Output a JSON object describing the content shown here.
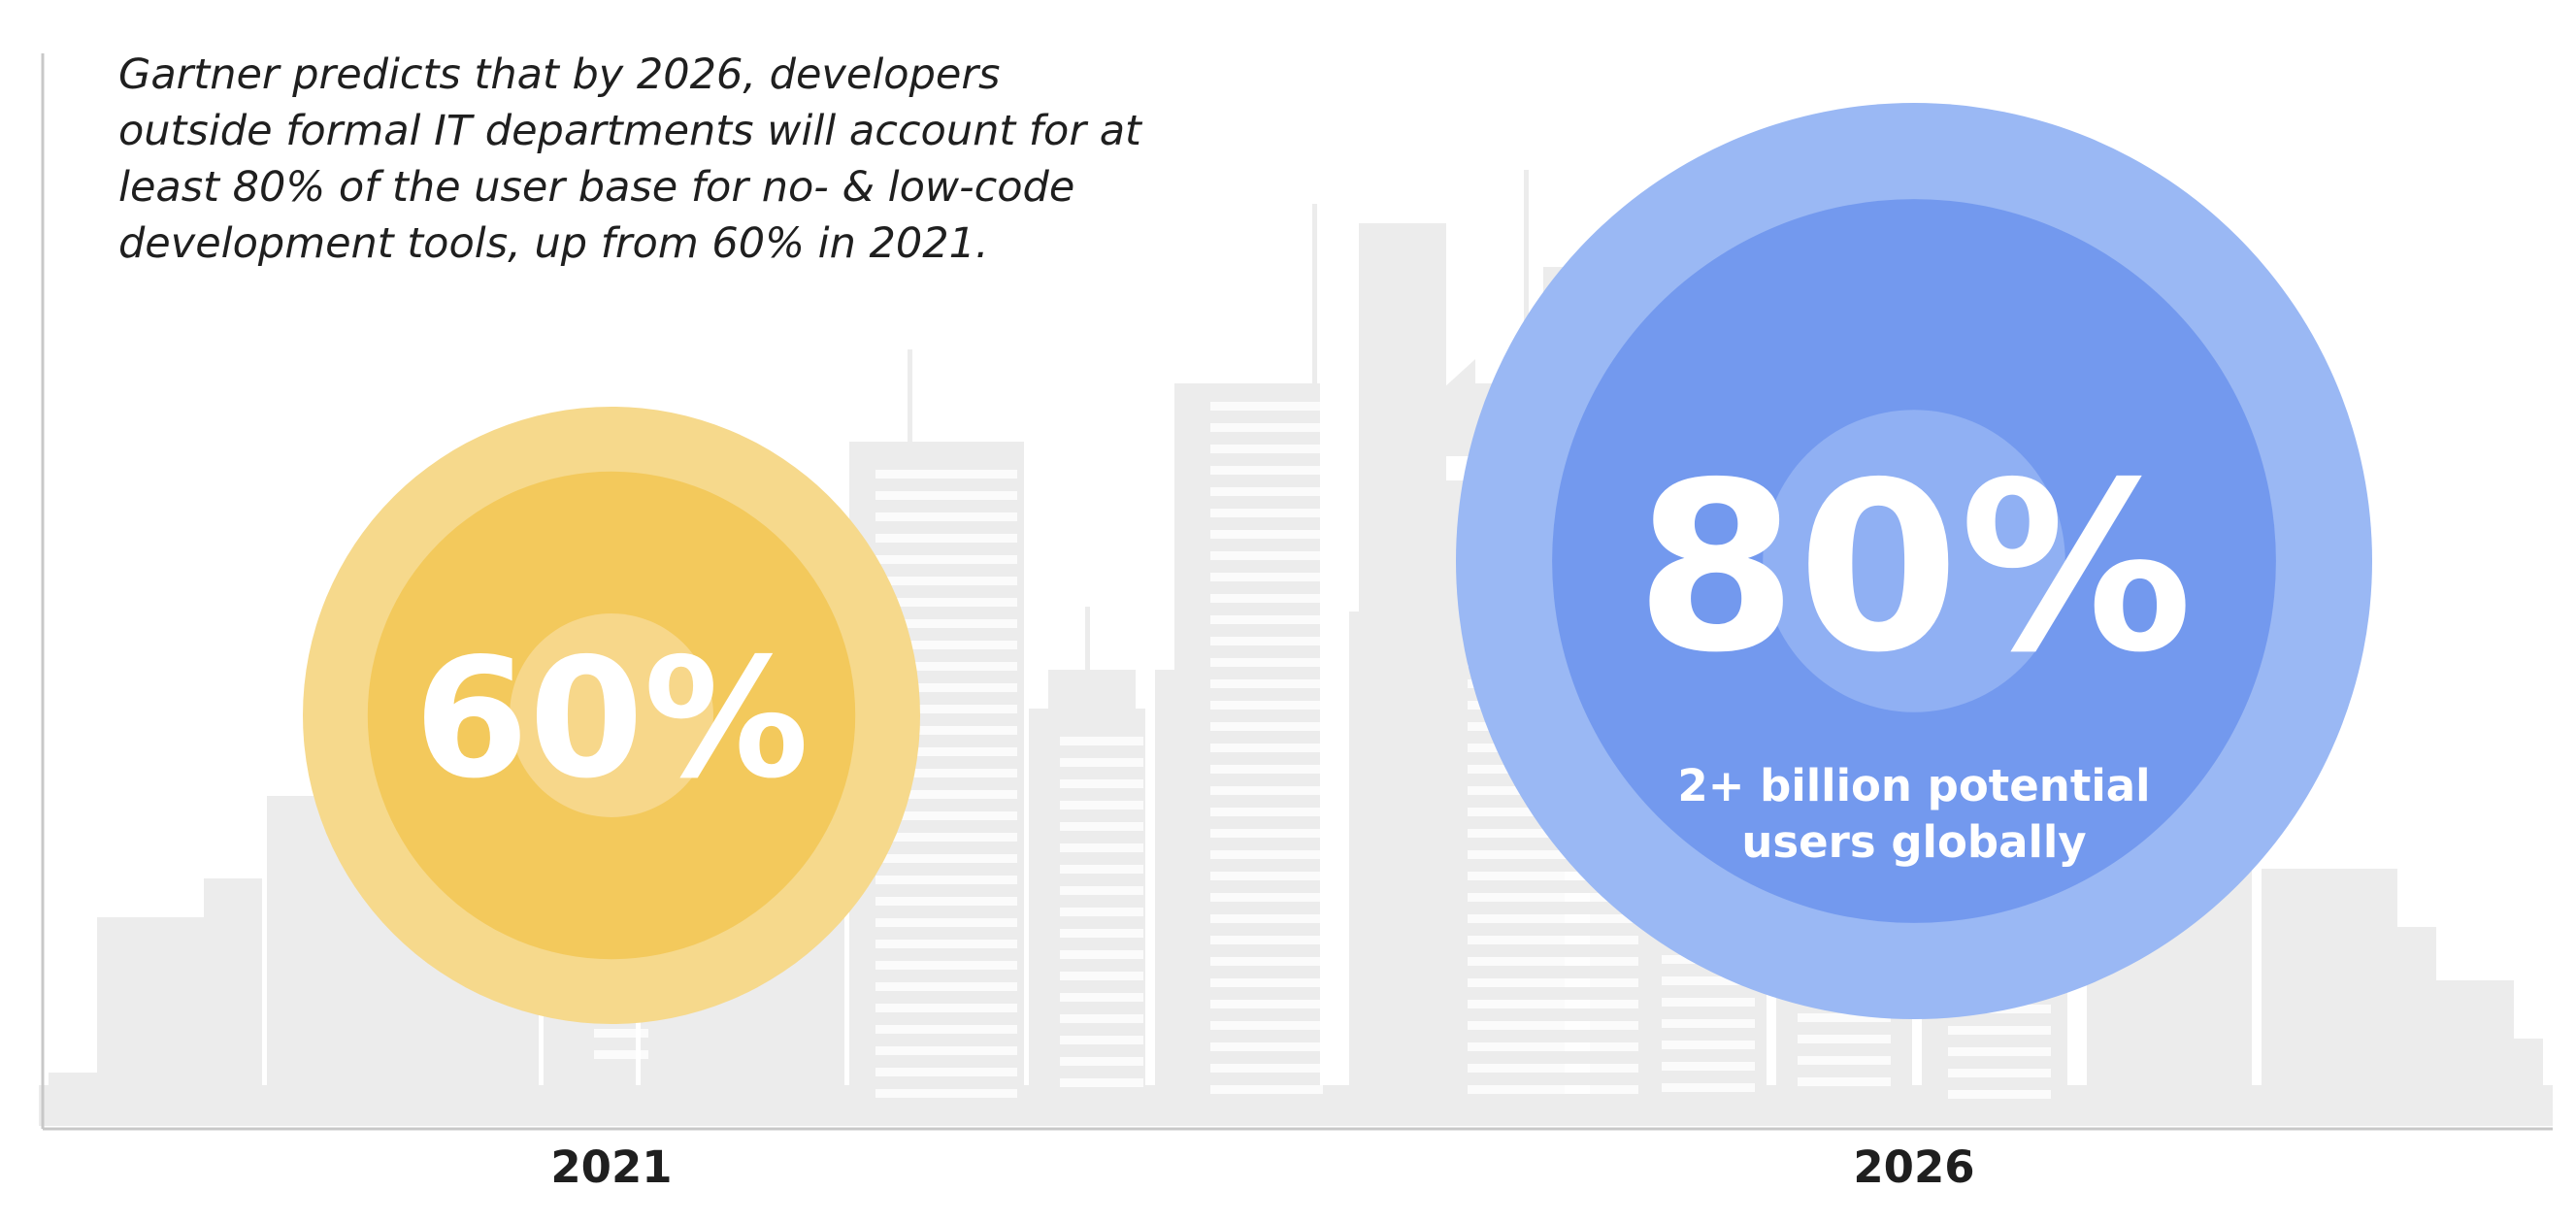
{
  "annotation": {
    "lines": [
      "Gartner predicts that by 2026, developers",
      "outside formal IT departments will account for at",
      "least 80% of the user base for no- & low-code",
      "development tools, up from 60% in 2021."
    ]
  },
  "chart_data": {
    "type": "bubble",
    "categories": [
      "2021",
      "2026"
    ],
    "values": [
      60,
      80
    ],
    "value_labels": [
      "60%",
      "80%"
    ],
    "sublabel_2026_lines": [
      "2+ billion potential",
      "users globally"
    ],
    "unit": "%",
    "colors": {
      "2021": [
        "#f6d98c",
        "#f3c95c",
        "#f7d78a"
      ],
      "2026": [
        "#9ab8f4",
        "#7399ee",
        "#90b0f3"
      ],
      "label": "#ffffff",
      "axis": "#c8c8c8",
      "skyline": "#ececec"
    },
    "background": "city-skyline"
  }
}
